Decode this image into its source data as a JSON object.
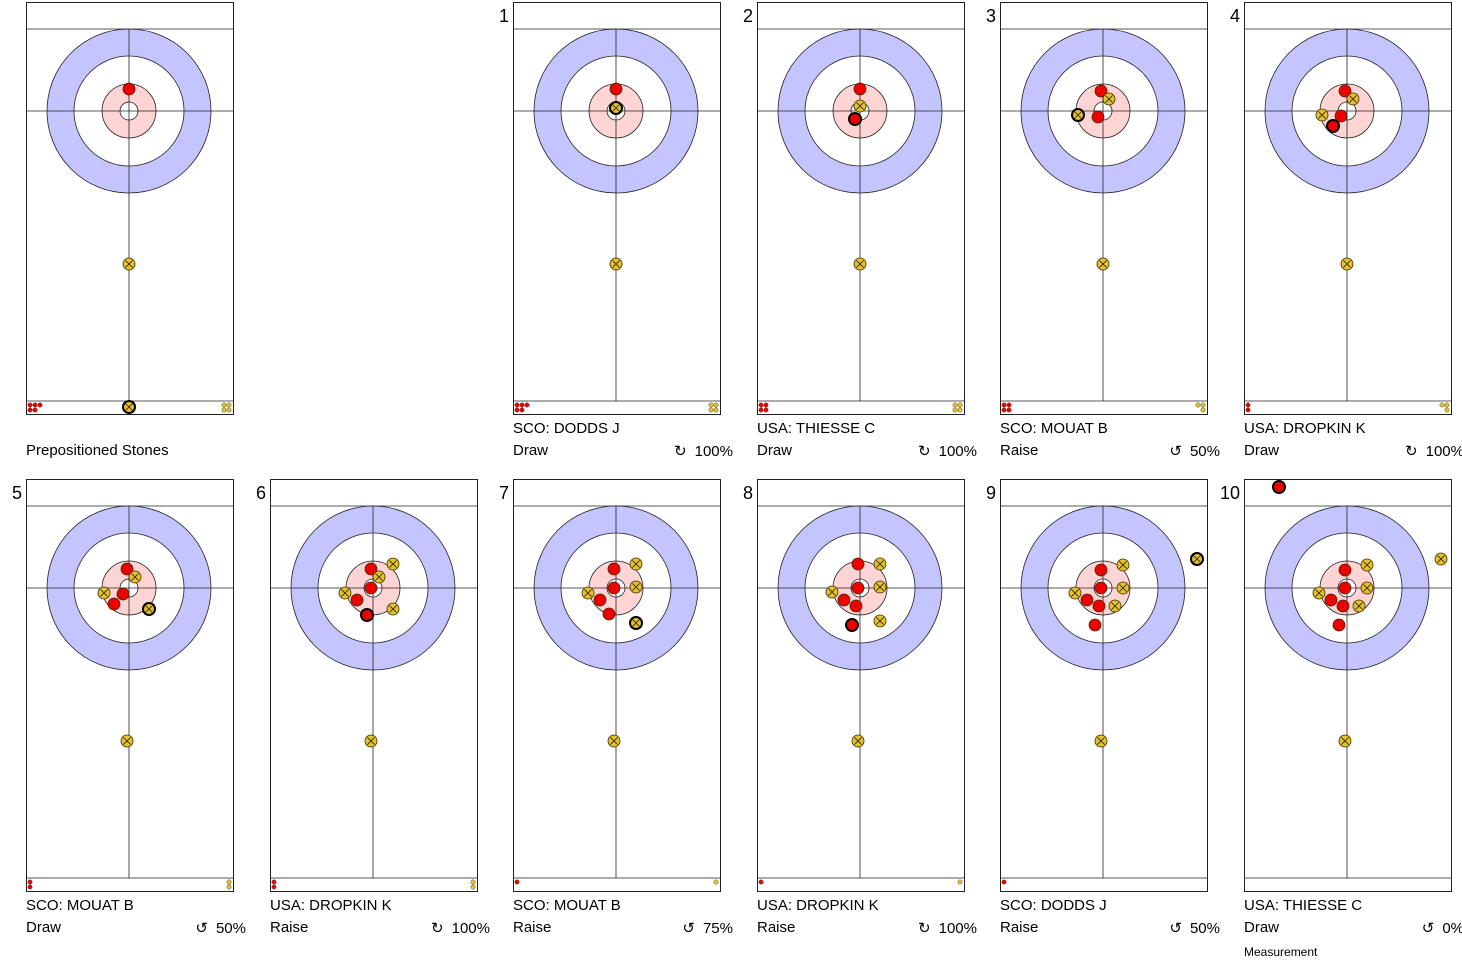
{
  "colors": {
    "red_stone": "#ee0000",
    "yellow_stone": "#e3c22c",
    "house_outer": "#c4c4ff",
    "house_inner": "#ffd4d4",
    "line": "#222222"
  },
  "panels": [
    {
      "number": "",
      "caption": "Prepositioned Stones",
      "player": "",
      "shot": "",
      "rotation_icon": "",
      "percent": "",
      "note": "",
      "remaining": {
        "red": 5,
        "yellow": 4
      },
      "stones": [
        {
          "color": "red",
          "dx": 0,
          "dy": -22
        },
        {
          "color": "yellow",
          "dx": 0,
          "dy": 153
        },
        {
          "color": "yellow",
          "dx": 0,
          "dy": 296,
          "last": true
        }
      ]
    },
    {
      "number": "1",
      "caption": "",
      "player": "SCO: DODDS J",
      "shot": "Draw",
      "rotation_icon": "↻",
      "percent": "100%",
      "note": "",
      "remaining": {
        "red": 5,
        "yellow": 4
      },
      "stones": [
        {
          "color": "red",
          "dx": 0,
          "dy": -22
        },
        {
          "color": "yellow",
          "dx": 0,
          "dy": -3,
          "last": true
        },
        {
          "color": "yellow",
          "dx": 0,
          "dy": 153
        }
      ]
    },
    {
      "number": "2",
      "caption": "",
      "player": "USA: THIESSE C",
      "shot": "Draw",
      "rotation_icon": "↻",
      "percent": "100%",
      "note": "",
      "remaining": {
        "red": 4,
        "yellow": 4
      },
      "stones": [
        {
          "color": "red",
          "dx": 0,
          "dy": -22
        },
        {
          "color": "yellow",
          "dx": 0,
          "dy": -5
        },
        {
          "color": "red",
          "dx": -5,
          "dy": 8,
          "last": true
        },
        {
          "color": "yellow",
          "dx": 0,
          "dy": 153
        }
      ]
    },
    {
      "number": "3",
      "caption": "",
      "player": "SCO: MOUAT B",
      "shot": "Raise",
      "rotation_icon": "↺",
      "percent": "50%",
      "note": "",
      "remaining": {
        "red": 4,
        "yellow": 3
      },
      "stones": [
        {
          "color": "red",
          "dx": -2,
          "dy": -20
        },
        {
          "color": "yellow",
          "dx": 6,
          "dy": -12
        },
        {
          "color": "yellow",
          "dx": -25,
          "dy": 4,
          "last": true
        },
        {
          "color": "red",
          "dx": -5,
          "dy": 6
        },
        {
          "color": "yellow",
          "dx": 0,
          "dy": 153
        }
      ]
    },
    {
      "number": "4",
      "caption": "",
      "player": "USA: DROPKIN K",
      "shot": "Draw",
      "rotation_icon": "↻",
      "percent": "100%",
      "note": "",
      "remaining": {
        "red": 2,
        "yellow": 3
      },
      "stones": [
        {
          "color": "red",
          "dx": -2,
          "dy": -20
        },
        {
          "color": "yellow",
          "dx": 6,
          "dy": -12
        },
        {
          "color": "yellow",
          "dx": -25,
          "dy": 4
        },
        {
          "color": "red",
          "dx": -6,
          "dy": 5
        },
        {
          "color": "red",
          "dx": -14,
          "dy": 15,
          "last": true
        },
        {
          "color": "yellow",
          "dx": 0,
          "dy": 153
        }
      ]
    },
    {
      "number": "5",
      "caption": "",
      "player": "SCO: MOUAT B",
      "shot": "Draw",
      "rotation_icon": "↺",
      "percent": "50%",
      "note": "",
      "remaining": {
        "red": 2,
        "yellow": 2
      },
      "stones": [
        {
          "color": "red",
          "dx": -2,
          "dy": -19
        },
        {
          "color": "yellow",
          "dx": 6,
          "dy": -11
        },
        {
          "color": "yellow",
          "dx": -25,
          "dy": 5
        },
        {
          "color": "red",
          "dx": -6,
          "dy": 6
        },
        {
          "color": "red",
          "dx": -15,
          "dy": 16
        },
        {
          "color": "yellow",
          "dx": 20,
          "dy": 21,
          "last": true
        },
        {
          "color": "yellow",
          "dx": -2,
          "dy": 153
        }
      ]
    },
    {
      "number": "6",
      "caption": "",
      "player": "USA: DROPKIN K",
      "shot": "Raise",
      "rotation_icon": "↻",
      "percent": "100%",
      "note": "",
      "remaining": {
        "red": 2,
        "yellow": 2
      },
      "stones": [
        {
          "color": "red",
          "dx": -2,
          "dy": -19
        },
        {
          "color": "yellow",
          "dx": 20,
          "dy": -24
        },
        {
          "color": "yellow",
          "dx": 6,
          "dy": -11
        },
        {
          "color": "red",
          "dx": -2,
          "dy": 0
        },
        {
          "color": "yellow",
          "dx": -28,
          "dy": 5
        },
        {
          "color": "red",
          "dx": -16,
          "dy": 12
        },
        {
          "color": "yellow",
          "dx": 20,
          "dy": 21
        },
        {
          "color": "red",
          "dx": -6,
          "dy": 27,
          "last": true
        },
        {
          "color": "yellow",
          "dx": -2,
          "dy": 153
        }
      ]
    },
    {
      "number": "7",
      "caption": "",
      "player": "SCO: MOUAT B",
      "shot": "Raise",
      "rotation_icon": "↺",
      "percent": "75%",
      "note": "",
      "remaining": {
        "red": 1,
        "yellow": 1
      },
      "stones": [
        {
          "color": "red",
          "dx": -2,
          "dy": -19
        },
        {
          "color": "yellow",
          "dx": 20,
          "dy": -24
        },
        {
          "color": "yellow",
          "dx": 20,
          "dy": -1
        },
        {
          "color": "red",
          "dx": -2,
          "dy": 0
        },
        {
          "color": "yellow",
          "dx": -28,
          "dy": 5
        },
        {
          "color": "red",
          "dx": -16,
          "dy": 12
        },
        {
          "color": "red",
          "dx": -7,
          "dy": 26
        },
        {
          "color": "yellow",
          "dx": 20,
          "dy": 35,
          "last": true
        },
        {
          "color": "yellow",
          "dx": -2,
          "dy": 153
        }
      ]
    },
    {
      "number": "8",
      "caption": "",
      "player": "USA: DROPKIN K",
      "shot": "Raise",
      "rotation_icon": "↻",
      "percent": "100%",
      "note": "",
      "remaining": {
        "red": 1,
        "yellow": 1
      },
      "stones": [
        {
          "color": "red",
          "dx": -2,
          "dy": -24
        },
        {
          "color": "yellow",
          "dx": 20,
          "dy": -24
        },
        {
          "color": "yellow",
          "dx": 20,
          "dy": -1
        },
        {
          "color": "red",
          "dx": -2,
          "dy": 0
        },
        {
          "color": "yellow",
          "dx": -28,
          "dy": 4
        },
        {
          "color": "red",
          "dx": -16,
          "dy": 12
        },
        {
          "color": "red",
          "dx": -4,
          "dy": 18
        },
        {
          "color": "yellow",
          "dx": 20,
          "dy": 33
        },
        {
          "color": "red",
          "dx": -8,
          "dy": 37,
          "last": true
        },
        {
          "color": "yellow",
          "dx": -2,
          "dy": 153
        }
      ]
    },
    {
      "number": "9",
      "caption": "",
      "player": "SCO: DODDS J",
      "shot": "Raise",
      "rotation_icon": "↺",
      "percent": "50%",
      "note": "",
      "remaining": {
        "red": 1,
        "yellow": 0
      },
      "stones": [
        {
          "color": "red",
          "dx": -2,
          "dy": -18
        },
        {
          "color": "yellow",
          "dx": 20,
          "dy": -23
        },
        {
          "color": "yellow",
          "dx": 20,
          "dy": 0
        },
        {
          "color": "red",
          "dx": -2,
          "dy": 0
        },
        {
          "color": "yellow",
          "dx": -28,
          "dy": 5
        },
        {
          "color": "red",
          "dx": -16,
          "dy": 12
        },
        {
          "color": "red",
          "dx": -4,
          "dy": 18
        },
        {
          "color": "yellow",
          "dx": 12,
          "dy": 18
        },
        {
          "color": "red",
          "dx": -8,
          "dy": 37
        },
        {
          "color": "yellow",
          "dx": 94,
          "dy": -29,
          "last": true
        },
        {
          "color": "yellow",
          "dx": -2,
          "dy": 153
        }
      ]
    },
    {
      "number": "10",
      "caption": "",
      "player": "USA: THIESSE C",
      "shot": "Draw",
      "rotation_icon": "↺",
      "percent": "0%",
      "note": "Measurement",
      "remaining": {
        "red": 0,
        "yellow": 0
      },
      "stones": [
        {
          "color": "red",
          "dx": -68,
          "dy": -101,
          "last": true
        },
        {
          "color": "yellow",
          "dx": 94,
          "dy": -29
        },
        {
          "color": "red",
          "dx": -2,
          "dy": -18
        },
        {
          "color": "yellow",
          "dx": 20,
          "dy": -23
        },
        {
          "color": "yellow",
          "dx": 20,
          "dy": 0
        },
        {
          "color": "red",
          "dx": -2,
          "dy": 0
        },
        {
          "color": "yellow",
          "dx": -28,
          "dy": 5
        },
        {
          "color": "red",
          "dx": -16,
          "dy": 12
        },
        {
          "color": "red",
          "dx": -4,
          "dy": 18
        },
        {
          "color": "yellow",
          "dx": 12,
          "dy": 18
        },
        {
          "color": "red",
          "dx": -8,
          "dy": 37
        },
        {
          "color": "yellow",
          "dx": -2,
          "dy": 153
        }
      ]
    }
  ]
}
